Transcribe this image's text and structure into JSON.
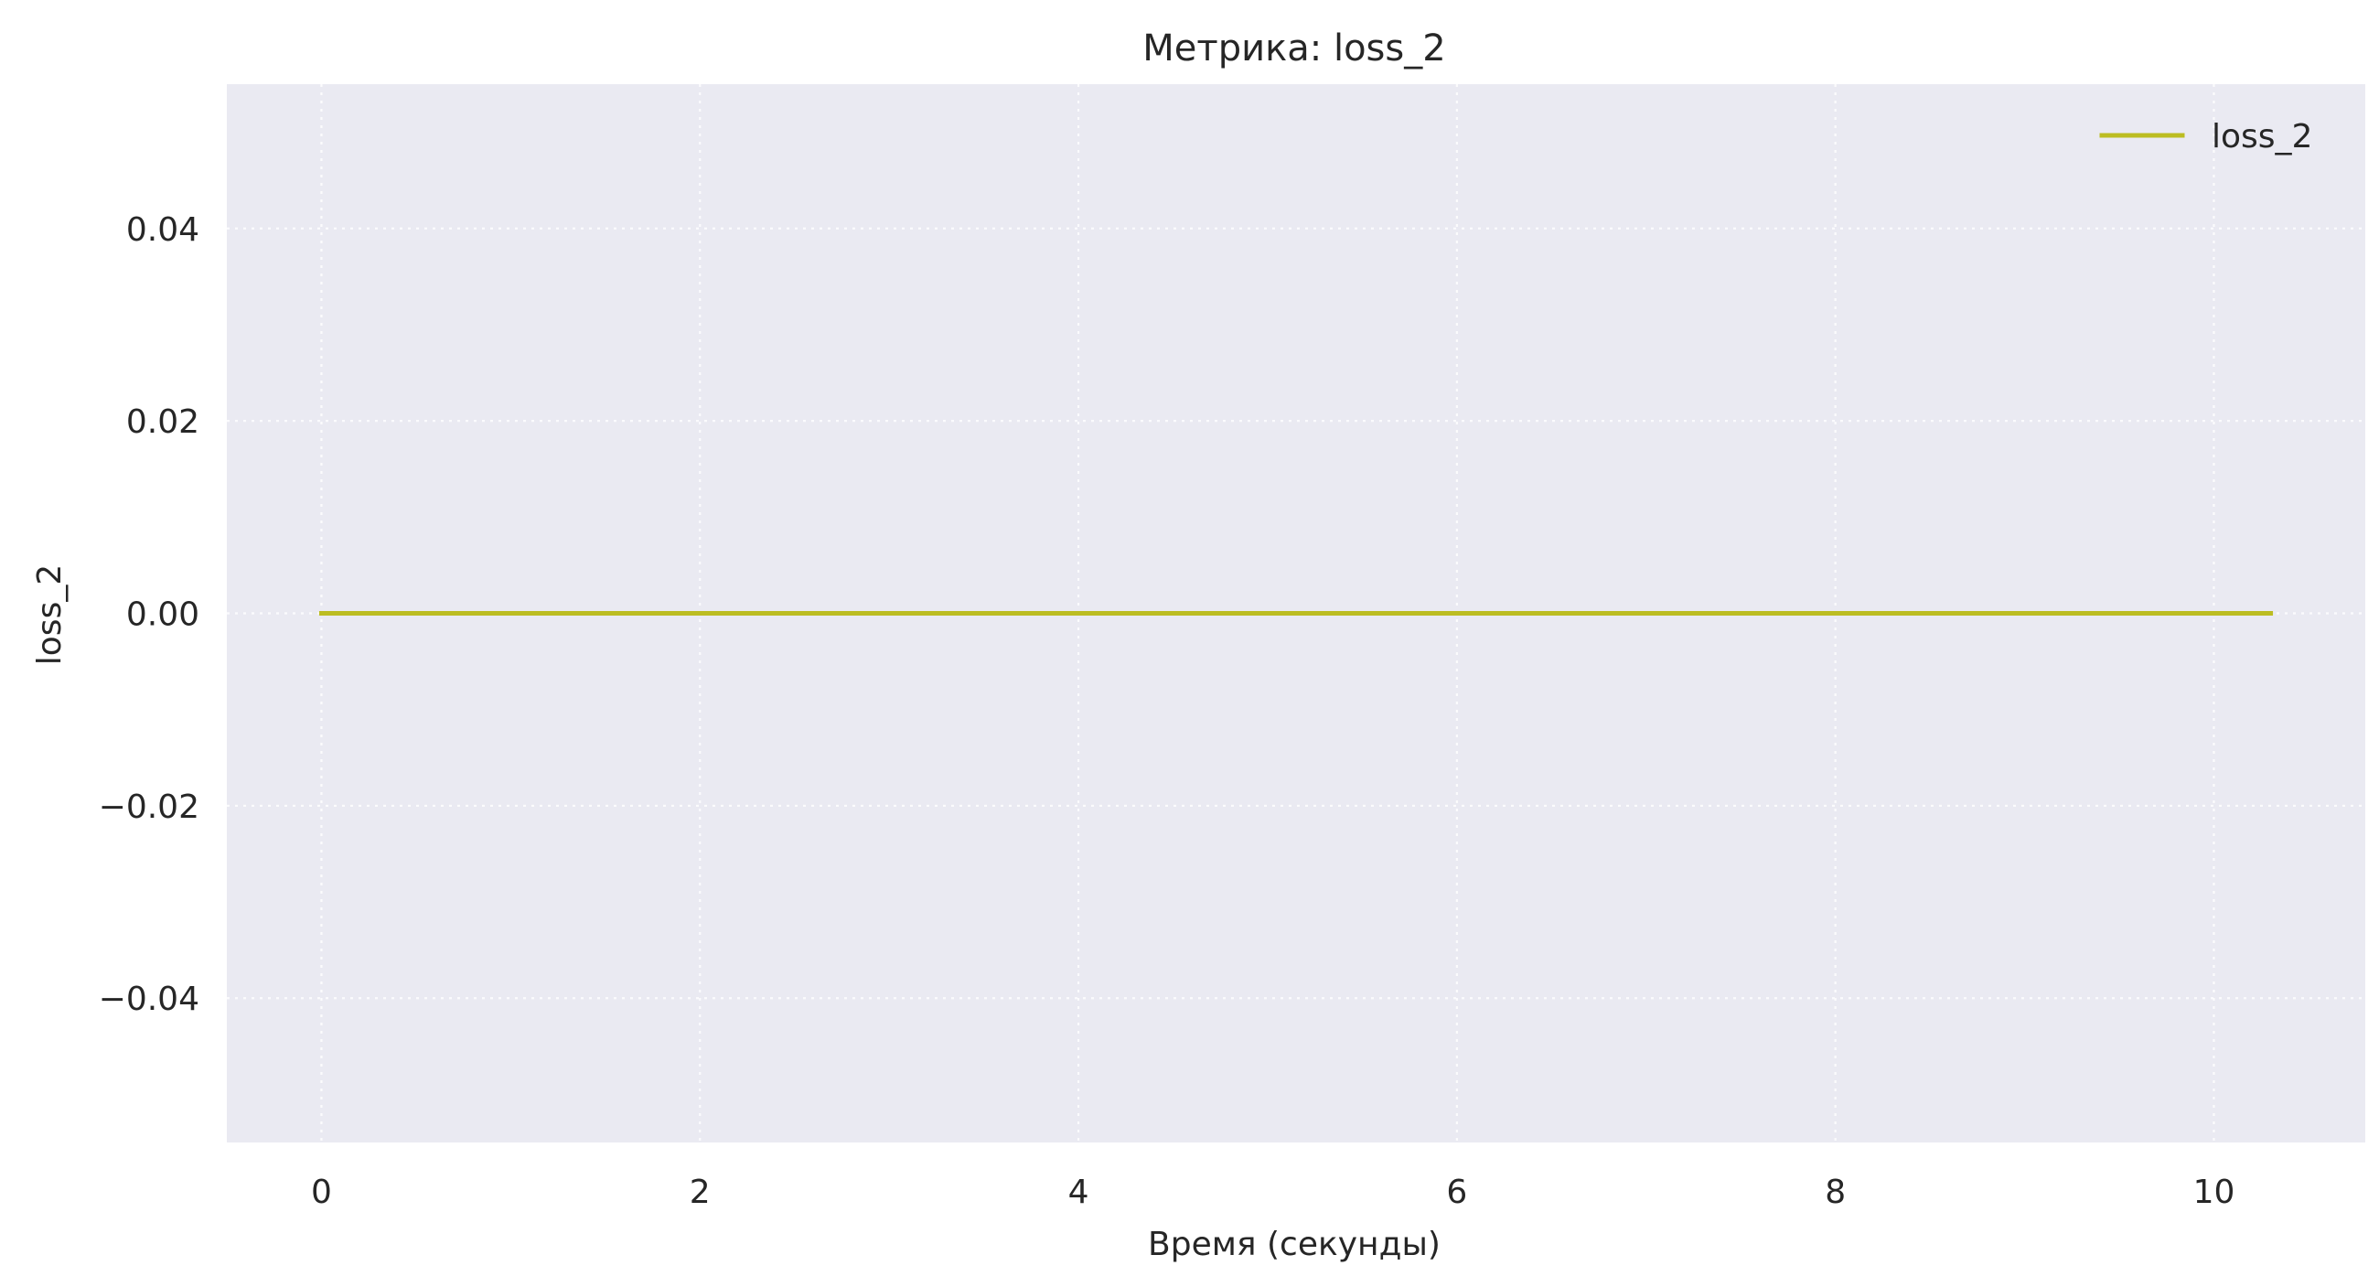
{
  "chart_data": {
    "type": "line",
    "title": "Метрика: loss_2",
    "xlabel": "Время (секунды)",
    "ylabel": "loss_2",
    "xlim": [
      -0.5,
      10.8
    ],
    "ylim": [
      -0.055,
      0.055
    ],
    "xticks": [
      0,
      2,
      4,
      6,
      8,
      10
    ],
    "xtick_labels": [
      "0",
      "2",
      "4",
      "6",
      "8",
      "10"
    ],
    "yticks": [
      0.04,
      0.02,
      0.0,
      -0.02,
      -0.04
    ],
    "ytick_labels": [
      "0.04",
      "0.02",
      "0.00",
      "−0.02",
      "−0.04"
    ],
    "grid": true,
    "legend_position": "top-right",
    "series": [
      {
        "name": "loss_2",
        "color": "#bcbd22",
        "x": [
          0,
          10.3
        ],
        "y": [
          0,
          0
        ]
      }
    ]
  },
  "colors": {
    "plot_background": "#eaeaf2",
    "grid": "#ffffff",
    "text": "#262626"
  }
}
